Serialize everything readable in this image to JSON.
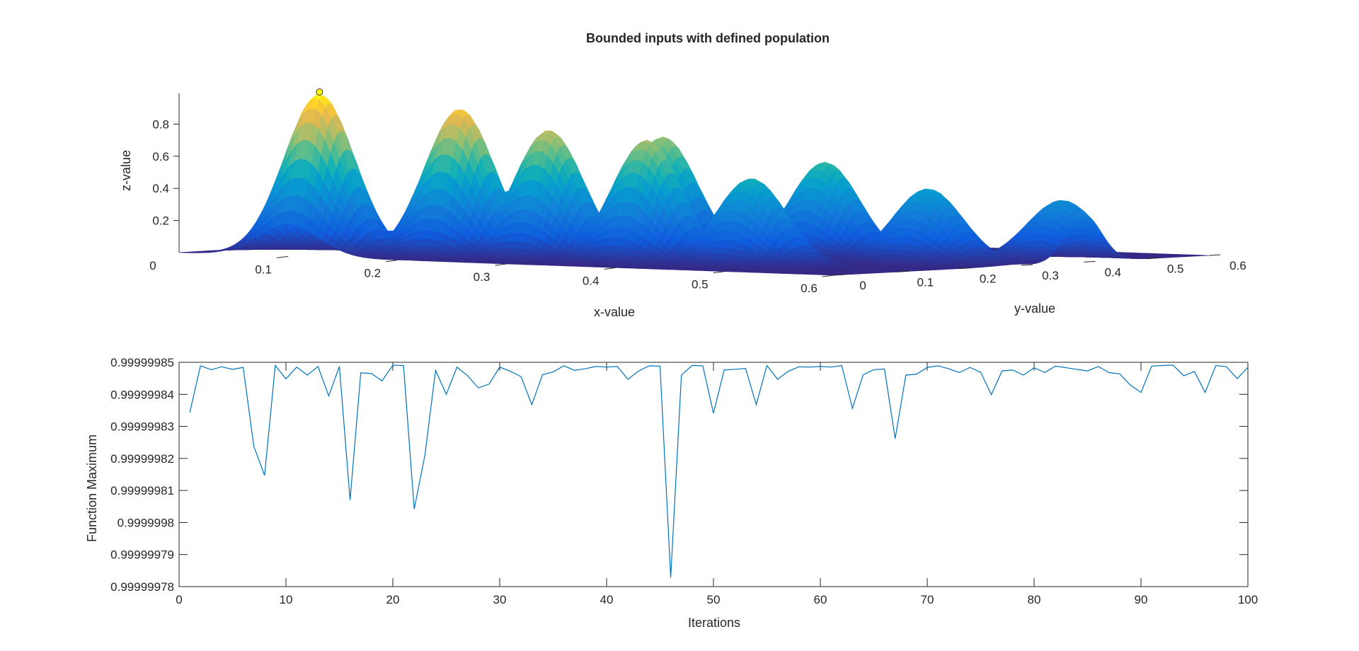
{
  "figure_title": "Bounded inputs with defined population",
  "chart_data": [
    {
      "type": "surface",
      "title": "Bounded inputs with defined population",
      "xlabel": "x-value",
      "ylabel": "y-value",
      "zlabel": "z-value",
      "xlim": [
        0,
        0.6
      ],
      "ylim": [
        0,
        0.6
      ],
      "zlim": [
        0,
        1
      ],
      "xticks": [
        "0",
        "0.1",
        "0.2",
        "0.3",
        "0.4",
        "0.5",
        "0.6"
      ],
      "yticks": [
        "0",
        "0.1",
        "0.2",
        "0.3",
        "0.4",
        "0.5",
        "0.6"
      ],
      "zticks": [
        "0.2",
        "0.4",
        "0.6",
        "0.8"
      ],
      "colormap": "parula",
      "marker": {
        "x": 0.1,
        "y": 0.05,
        "z": 0.99999985,
        "color": "#ffff00"
      },
      "peaks": [
        {
          "x": 0.1,
          "y": 0.05,
          "z": 1.0
        },
        {
          "x": 0.2,
          "y": 0.1,
          "z": 0.92
        },
        {
          "x": 0.27,
          "y": 0.12,
          "z": 0.8
        },
        {
          "x": 0.3,
          "y": 0.25,
          "z": 0.74
        },
        {
          "x": 0.36,
          "y": 0.12,
          "z": 0.76
        },
        {
          "x": 0.42,
          "y": 0.3,
          "z": 0.6
        },
        {
          "x": 0.45,
          "y": 0.13,
          "z": 0.54
        },
        {
          "x": 0.52,
          "y": 0.29,
          "z": 0.46
        },
        {
          "x": 0.58,
          "y": 0.4,
          "z": 0.38
        }
      ]
    },
    {
      "type": "line",
      "xlabel": "Iterations",
      "ylabel": "Function Maximum",
      "xlim": [
        0,
        100
      ],
      "ylim": [
        0.99999978,
        0.99999985
      ],
      "xticks": [
        "0",
        "10",
        "20",
        "30",
        "40",
        "50",
        "60",
        "70",
        "80",
        "90",
        "100"
      ],
      "yticks": [
        "0.99999978",
        "0.99999979",
        "0.9999998",
        "0.99999981",
        "0.99999982",
        "0.99999983",
        "0.99999984",
        "0.99999985"
      ],
      "line_color": "#0072bd",
      "series": [
        {
          "name": "Function Maximum",
          "x": [
            1,
            2,
            3,
            4,
            5,
            6,
            7,
            8,
            9,
            10,
            11,
            12,
            13,
            14,
            15,
            16,
            17,
            18,
            19,
            20,
            21,
            22,
            23,
            24,
            25,
            26,
            27,
            28,
            29,
            30,
            31,
            32,
            33,
            34,
            35,
            36,
            37,
            38,
            39,
            40,
            41,
            42,
            43,
            44,
            45,
            46,
            47,
            48,
            49,
            50,
            51,
            52,
            53,
            54,
            55,
            56,
            57,
            58,
            59,
            60,
            61,
            62,
            63,
            64,
            65,
            66,
            67,
            68,
            69,
            70,
            71,
            72,
            73,
            74,
            75,
            76,
            77,
            78,
            79,
            80,
            81,
            82,
            83,
            84,
            85,
            86,
            87,
            88,
            89,
            90,
            91,
            92,
            93,
            94,
            95,
            96,
            97,
            98,
            99,
            100
          ],
          "y": [
            0.9999998343,
            0.9999998489,
            0.9999998477,
            0.9999998486,
            0.9999998478,
            0.9999998484,
            0.9999998237,
            0.9999998147,
            0.999999849,
            0.9999998448,
            0.9999998485,
            0.999999846,
            0.9999998487,
            0.9999998395,
            0.9999998487,
            0.999999807,
            0.9999998467,
            0.9999998465,
            0.9999998442,
            0.9999998491,
            0.999999849,
            0.9999998042,
            0.999999821,
            0.9999998475,
            0.99999984,
            0.9999998485,
            0.9999998458,
            0.999999842,
            0.9999998432,
            0.9999998485,
            0.9999998472,
            0.9999998455,
            0.9999998368,
            0.9999998461,
            0.999999847,
            0.9999998489,
            0.9999998475,
            0.999999848,
            0.9999998487,
            0.9999998485,
            0.9999998487,
            0.9999998447,
            0.9999998473,
            0.9999998489,
            0.9999998488,
            0.9999997828,
            0.999999846,
            0.999999849,
            0.9999998489,
            0.9999998341,
            0.9999998476,
            0.9999998478,
            0.9999998481,
            0.9999998368,
            0.999999849,
            0.9999998447,
            0.9999998472,
            0.9999998486,
            0.9999998485,
            0.9999998487,
            0.9999998485,
            0.999999849,
            0.9999998356,
            0.9999998461,
            0.9999998477,
            0.9999998479,
            0.9999998262,
            0.999999846,
            0.9999998463,
            0.9999998484,
            0.9999998489,
            0.999999848,
            0.9999998468,
            0.9999998484,
            0.9999998469,
            0.9999998399,
            0.9999998473,
            0.9999998476,
            0.999999846,
            0.9999998483,
            0.9999998468,
            0.9999998488,
            0.9999998483,
            0.9999998478,
            0.9999998473,
            0.9999998487,
            0.9999998468,
            0.9999998464,
            0.9999998429,
            0.9999998406,
            0.9999998488,
            0.999999849,
            0.9999998491,
            0.9999998458,
            0.9999998471,
            0.9999998406,
            0.999999849,
            0.9999998486,
            0.9999998449,
            0.9999998484
          ]
        }
      ]
    }
  ]
}
